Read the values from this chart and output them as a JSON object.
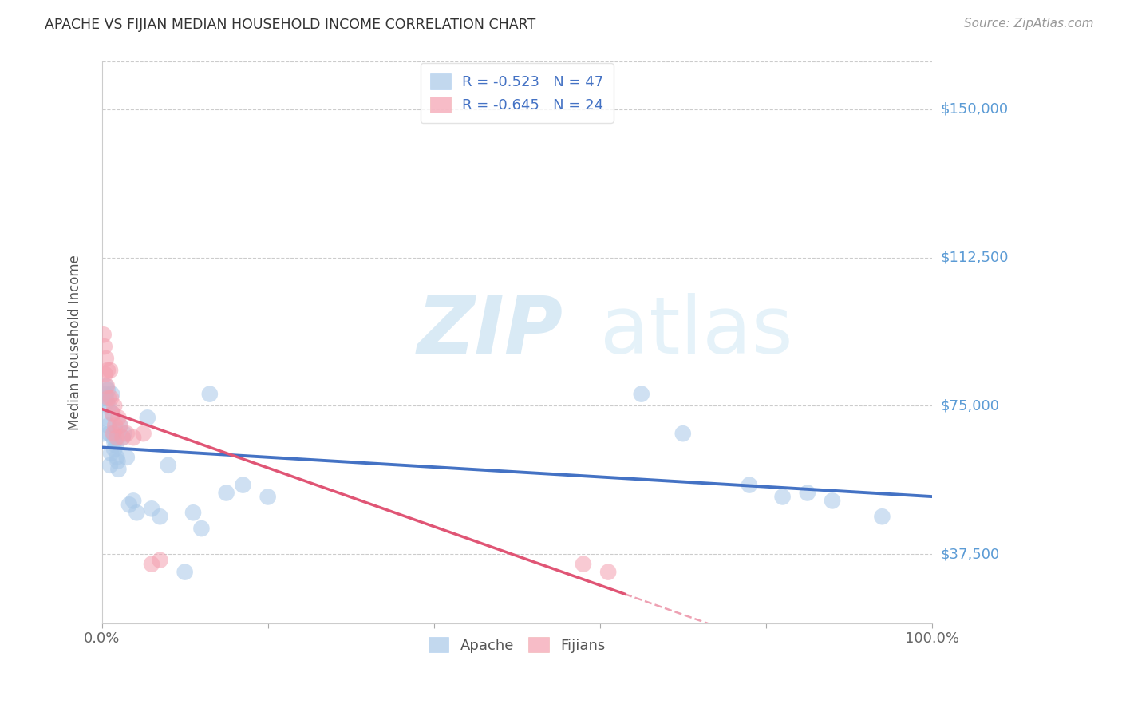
{
  "title": "APACHE VS FIJIAN MEDIAN HOUSEHOLD INCOME CORRELATION CHART",
  "source": "Source: ZipAtlas.com",
  "ylabel": "Median Household Income",
  "xlim": [
    0.0,
    1.0
  ],
  "ylim": [
    20000,
    162000
  ],
  "yticks": [
    37500,
    75000,
    112500,
    150000
  ],
  "ytick_labels": [
    "$37,500",
    "$75,000",
    "$112,500",
    "$150,000"
  ],
  "xticks": [
    0.0,
    0.2,
    0.4,
    0.6,
    0.8,
    1.0
  ],
  "xtick_labels": [
    "0.0%",
    "",
    "",
    "",
    "",
    "100.0%"
  ],
  "apache_color": "#a8c8e8",
  "fijian_color": "#f4a0b0",
  "apache_line_color": "#4472c4",
  "fijian_line_color": "#e05575",
  "apache_R": -0.523,
  "apache_N": 47,
  "fijian_R": -0.645,
  "fijian_N": 24,
  "watermark_zip": "ZIP",
  "watermark_atlas": "atlas",
  "apache_x": [
    0.001,
    0.003,
    0.004,
    0.005,
    0.005,
    0.006,
    0.007,
    0.008,
    0.008,
    0.009,
    0.01,
    0.011,
    0.012,
    0.013,
    0.014,
    0.015,
    0.015,
    0.016,
    0.017,
    0.018,
    0.019,
    0.02,
    0.022,
    0.025,
    0.027,
    0.03,
    0.033,
    0.038,
    0.042,
    0.055,
    0.06,
    0.07,
    0.08,
    0.1,
    0.11,
    0.12,
    0.13,
    0.15,
    0.17,
    0.2,
    0.65,
    0.7,
    0.78,
    0.82,
    0.85,
    0.88,
    0.94
  ],
  "apache_y": [
    68000,
    72000,
    78000,
    80000,
    77000,
    76000,
    79000,
    75000,
    70000,
    68000,
    60000,
    63000,
    78000,
    73000,
    67000,
    66000,
    64000,
    69000,
    65000,
    62000,
    61000,
    59000,
    70000,
    67000,
    68000,
    62000,
    50000,
    51000,
    48000,
    72000,
    49000,
    47000,
    60000,
    33000,
    48000,
    44000,
    78000,
    53000,
    55000,
    52000,
    78000,
    68000,
    55000,
    52000,
    53000,
    51000,
    47000
  ],
  "fijian_x": [
    0.002,
    0.003,
    0.004,
    0.005,
    0.006,
    0.007,
    0.008,
    0.01,
    0.011,
    0.013,
    0.014,
    0.015,
    0.016,
    0.018,
    0.02,
    0.022,
    0.025,
    0.03,
    0.038,
    0.05,
    0.06,
    0.07,
    0.58,
    0.61
  ],
  "fijian_y": [
    93000,
    90000,
    83000,
    87000,
    80000,
    84000,
    77000,
    84000,
    77000,
    73000,
    68000,
    75000,
    70000,
    67000,
    72000,
    70000,
    67000,
    68000,
    67000,
    68000,
    35000,
    36000,
    35000,
    33000
  ]
}
